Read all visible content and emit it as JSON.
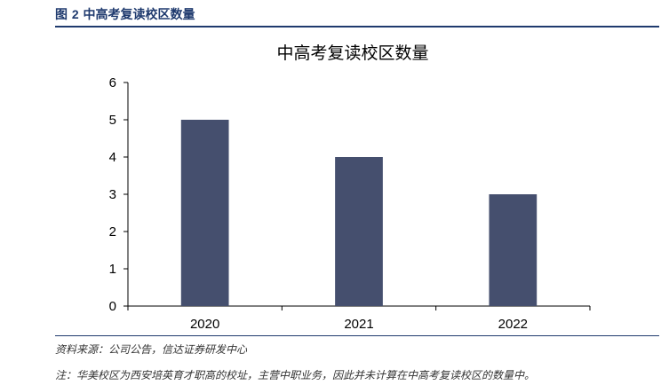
{
  "header": {
    "figure_prefix": "图",
    "figure_number": "2",
    "figure_title": "中高考复读校区数量"
  },
  "footer": {
    "source": "资料来源：公司公告，信达证券研发中心",
    "note": "注：华美校区为西安培英育才职高的校址，主营中职业务，因此并未计算在中高考复读校区的数量中。"
  },
  "colors": {
    "bar": "#454f6e",
    "header_accent": "#1f3a6e",
    "axis": "#000000"
  },
  "chart_data": {
    "type": "bar",
    "title": "中高考复读校区数量",
    "categories": [
      "2020",
      "2021",
      "2022"
    ],
    "values": [
      5,
      4,
      3
    ],
    "xlabel": "",
    "ylabel": "",
    "ylim": [
      0,
      6
    ],
    "yticks": [
      "0",
      "1",
      "2",
      "3",
      "4",
      "5",
      "6"
    ],
    "grid": false,
    "legend": "none"
  }
}
